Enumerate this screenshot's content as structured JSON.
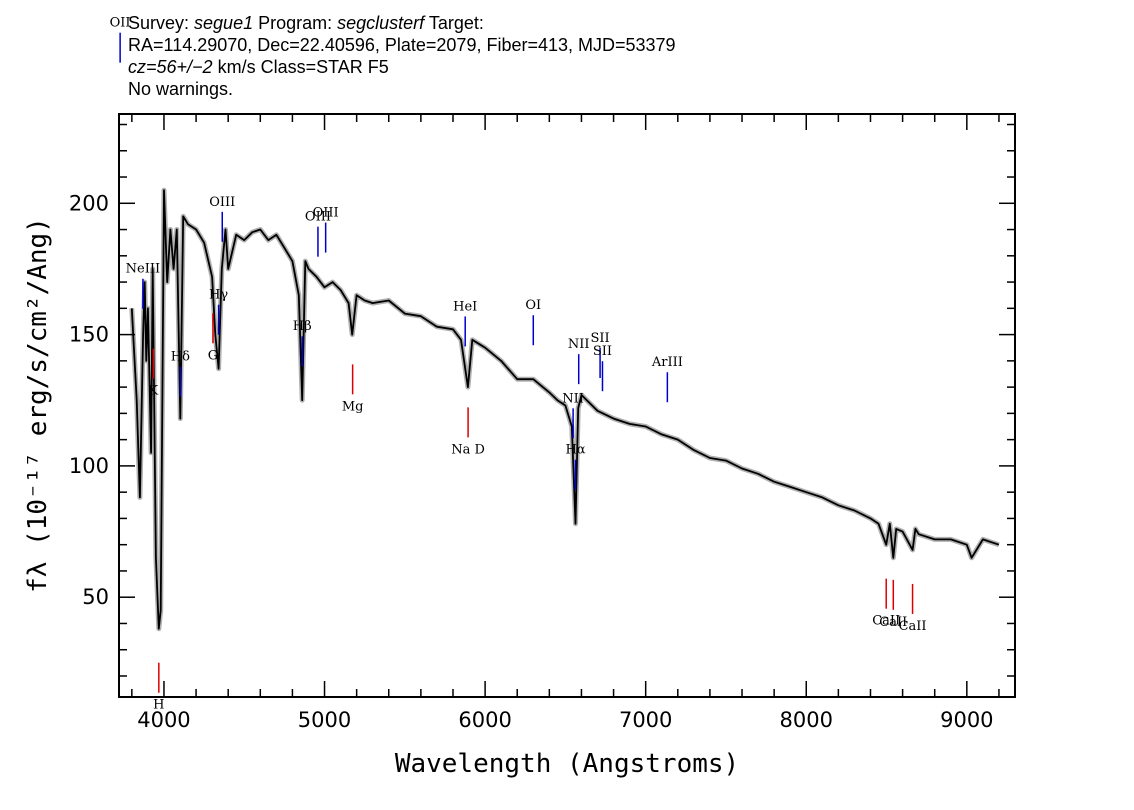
{
  "header": {
    "line1": {
      "survey_label": "Survey: ",
      "survey": "segue1",
      "program_label": " Program: ",
      "program": "segclusterf",
      "target_label": " Target:"
    },
    "line2": "RA=114.29070, Dec=22.40596, Plate=2079, Fiber=413, MJD=53379",
    "line3": {
      "cz": "cz=56+/−2",
      "rest": " km/s Class=STAR F5"
    },
    "line4": "No warnings."
  },
  "chart_data": {
    "type": "line",
    "xlabel": "Wavelength (Angstroms)",
    "ylabel": "fλ (10⁻¹⁷ erg/s/cm²/Ang)",
    "xlim": [
      3720,
      9300
    ],
    "ylim": [
      12,
      234
    ],
    "x_ticks": [
      4000,
      5000,
      6000,
      7000,
      8000,
      9000
    ],
    "y_ticks": [
      50,
      100,
      150,
      200
    ],
    "grid": false,
    "series": [
      {
        "style": "black-spectrum",
        "x": [
          3800,
          3830,
          3850,
          3870,
          3880,
          3890,
          3900,
          3920,
          3930,
          3950,
          3968,
          3980,
          4000,
          4020,
          4040,
          4060,
          4080,
          4102,
          4120,
          4150,
          4200,
          4250,
          4300,
          4320,
          4340,
          4360,
          4383,
          4400,
          4450,
          4500,
          4550,
          4600,
          4650,
          4700,
          4750,
          4800,
          4840,
          4861,
          4880,
          4900,
          4950,
          5000,
          5050,
          5100,
          5150,
          5172,
          5200,
          5250,
          5300,
          5400,
          5500,
          5600,
          5700,
          5800,
          5850,
          5893,
          5920,
          6000,
          6100,
          6200,
          6300,
          6400,
          6450,
          6500,
          6540,
          6563,
          6580,
          6600,
          6700,
          6800,
          6900,
          7000,
          7100,
          7200,
          7300,
          7400,
          7500,
          7600,
          7700,
          7800,
          7900,
          8000,
          8100,
          8200,
          8300,
          8400,
          8450,
          8498,
          8520,
          8542,
          8560,
          8600,
          8662,
          8680,
          8700,
          8800,
          8900,
          9000,
          9030,
          9100,
          9200
        ],
        "y": [
          160,
          125,
          88,
          150,
          170,
          140,
          160,
          105,
          175,
          65,
          38,
          45,
          205,
          170,
          190,
          175,
          190,
          118,
          195,
          192,
          190,
          185,
          172,
          150,
          137,
          175,
          190,
          175,
          188,
          186,
          189,
          190,
          186,
          188,
          183,
          178,
          165,
          125,
          178,
          175,
          172,
          168,
          170,
          167,
          162,
          150,
          165,
          163,
          162,
          163,
          158,
          157,
          153,
          152,
          148,
          130,
          148,
          145,
          140,
          133,
          133,
          128,
          125,
          123,
          115,
          78,
          122,
          127,
          121,
          118,
          116,
          115,
          112,
          110,
          106,
          103,
          102,
          99,
          97,
          94,
          92,
          90,
          88,
          85,
          83,
          80,
          78,
          70,
          78,
          65,
          76,
          75,
          68,
          76,
          74,
          72,
          72,
          70,
          65,
          72,
          70
        ]
      }
    ],
    "line_markers": [
      {
        "label": "OII",
        "x": 3727,
        "color": "blue",
        "position": "above"
      },
      {
        "label": "NeIII",
        "x": 3869,
        "color": "blue",
        "position": "above"
      },
      {
        "label": "Hδ",
        "x": 4102,
        "color": "blue",
        "position": "above"
      },
      {
        "label": "Hγ",
        "x": 4340,
        "color": "blue",
        "position": "above"
      },
      {
        "label": "OIII",
        "x": 4363,
        "color": "blue",
        "position": "above"
      },
      {
        "label": "Hβ",
        "x": 4861,
        "color": "blue",
        "position": "above"
      },
      {
        "label": "OIII",
        "x": 4959,
        "color": "blue",
        "position": "above"
      },
      {
        "label": "OIII",
        "x": 5007,
        "color": "blue",
        "position": "above"
      },
      {
        "label": "HeI",
        "x": 5876,
        "color": "blue",
        "position": "above"
      },
      {
        "label": "OI",
        "x": 6300,
        "color": "blue",
        "position": "above"
      },
      {
        "label": "NII",
        "x": 6548,
        "color": "blue",
        "position": "above"
      },
      {
        "label": "Hα",
        "x": 6563,
        "color": "blue",
        "position": "above"
      },
      {
        "label": "NII",
        "x": 6583,
        "color": "blue",
        "position": "above"
      },
      {
        "label": "SII",
        "x": 6716,
        "color": "blue",
        "position": "above"
      },
      {
        "label": "SII",
        "x": 6731,
        "color": "blue",
        "position": "above"
      },
      {
        "label": "ArIII",
        "x": 7135,
        "color": "blue",
        "position": "above"
      },
      {
        "label": "K",
        "x": 3934,
        "color": "red",
        "position": "below"
      },
      {
        "label": "H",
        "x": 3968,
        "color": "red",
        "position": "below"
      },
      {
        "label": "G",
        "x": 4305,
        "color": "red",
        "position": "below"
      },
      {
        "label": "Mg",
        "x": 5175,
        "color": "red",
        "position": "below"
      },
      {
        "label": "Na D",
        "x": 5894,
        "color": "red",
        "position": "below"
      },
      {
        "label": "CaII",
        "x": 8498,
        "color": "red",
        "position": "below"
      },
      {
        "label": "CaII",
        "x": 8542,
        "color": "red",
        "position": "below"
      },
      {
        "label": "CaII",
        "x": 8662,
        "color": "red",
        "position": "below"
      }
    ],
    "colors": {
      "spectrum": "#000000",
      "error": "#b0b0b0",
      "emission": "#0000cc",
      "absorption": "#dd0000"
    }
  }
}
